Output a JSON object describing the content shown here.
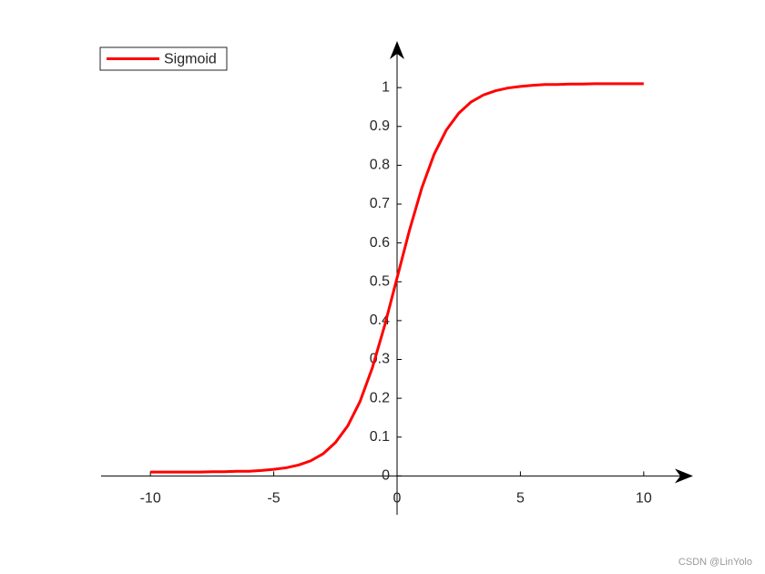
{
  "chart_data": {
    "type": "line",
    "x": [
      -10,
      -9.5,
      -9,
      -8.5,
      -8,
      -7.5,
      -7,
      -6.5,
      -6,
      -5.5,
      -5,
      -4.5,
      -4,
      -3.5,
      -3,
      -2.5,
      -2,
      -1.5,
      -1,
      -0.5,
      0,
      0.5,
      1,
      1.5,
      2,
      2.5,
      3,
      3.5,
      4,
      4.5,
      5,
      5.5,
      6,
      6.5,
      7,
      7.5,
      8,
      8.5,
      9,
      9.5,
      10
    ],
    "series": [
      {
        "name": "Sigmoid",
        "color": "#ff0000",
        "values": [
          0.01,
          0.01,
          0.01,
          0.01,
          0.01,
          0.011,
          0.011,
          0.012,
          0.012,
          0.014,
          0.017,
          0.021,
          0.028,
          0.039,
          0.057,
          0.086,
          0.129,
          0.192,
          0.279,
          0.388,
          0.51,
          0.632,
          0.741,
          0.828,
          0.891,
          0.934,
          0.963,
          0.981,
          0.992,
          0.999,
          1.003,
          1.006,
          1.008,
          1.008,
          1.009,
          1.009,
          1.01,
          1.01,
          1.01,
          1.01,
          1.01
        ]
      }
    ],
    "xlim": [
      -12,
      12
    ],
    "ylim": [
      -0.1,
      1.12
    ],
    "xticks": [
      -10,
      -5,
      0,
      5,
      10
    ],
    "yticks": [
      0,
      0.1,
      0.2,
      0.3,
      0.4,
      0.5,
      0.6,
      0.7,
      0.8,
      0.9,
      1
    ],
    "legend": "upper left",
    "watermark": "CSDN @LinYolo"
  }
}
